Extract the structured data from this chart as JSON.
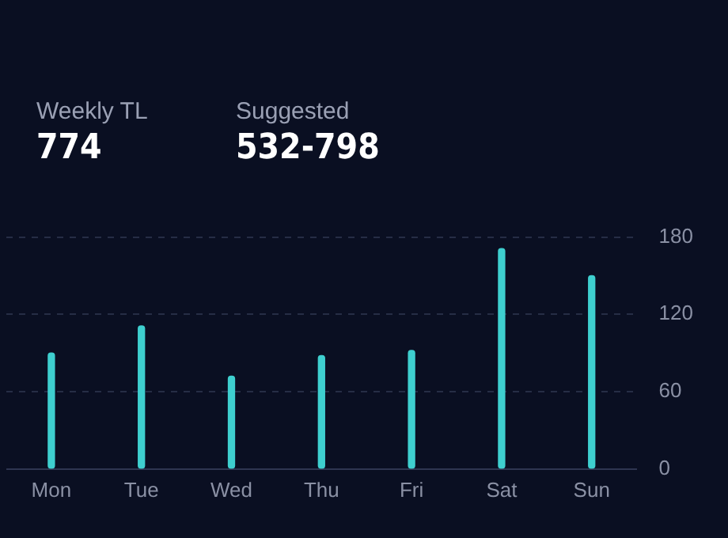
{
  "chart_data": {
    "type": "bar",
    "annotations": [
      "Weekly TL",
      "774",
      "Suggested",
      "532-798"
    ],
    "categories": [
      "Mon",
      "Tue",
      "Wed",
      "Thu",
      "Fri",
      "Sat",
      "Sun"
    ],
    "values": [
      90,
      111,
      72,
      88,
      92,
      171,
      150
    ],
    "color": "#3ecfcf",
    "ylim": [
      0,
      180
    ],
    "yticks": [
      0,
      60,
      120,
      180
    ],
    "grid": "y",
    "legend": false
  }
}
